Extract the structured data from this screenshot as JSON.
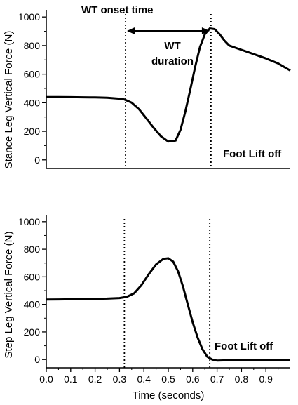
{
  "chart_data": [
    {
      "type": "line",
      "ylabel": "Stance Leg Vertical Force (N)",
      "xlim": [
        0,
        1.0
      ],
      "ylim": [
        -60,
        1050
      ],
      "yticks": [
        0,
        200,
        400,
        600,
        800,
        1000
      ],
      "series": [
        {
          "x": [
            0.0,
            0.05,
            0.1,
            0.15,
            0.2,
            0.25,
            0.3,
            0.32,
            0.35,
            0.38,
            0.41,
            0.44,
            0.47,
            0.5,
            0.53,
            0.55,
            0.57,
            0.59,
            0.61,
            0.63,
            0.65,
            0.67,
            0.69,
            0.71,
            0.73,
            0.75,
            0.8,
            0.85,
            0.9,
            0.95,
            1.0
          ],
          "y": [
            440,
            440,
            439,
            438,
            437,
            435,
            428,
            423,
            400,
            355,
            290,
            225,
            165,
            128,
            135,
            210,
            340,
            490,
            650,
            790,
            880,
            920,
            915,
            880,
            835,
            800,
            770,
            740,
            710,
            675,
            625
          ]
        }
      ],
      "vlines": [
        0.325,
        0.675
      ],
      "annotations": {
        "onset": "WT onset time",
        "duration_line1": "WT",
        "duration_line2": "duration",
        "lift": "Foot Lift off"
      }
    },
    {
      "type": "line",
      "xlabel": "Time (seconds)",
      "ylabel": "Step Leg Vertical Force (N)",
      "xlim": [
        0,
        1.0
      ],
      "ylim": [
        -60,
        1050
      ],
      "xticks": [
        0.0,
        0.1,
        0.2,
        0.3,
        0.4,
        0.5,
        0.6,
        0.7,
        0.8,
        0.9
      ],
      "xticklabels": [
        "0.0",
        "0.1",
        "0.2",
        "0.3",
        "0.4",
        "0.5",
        "0.6",
        "0.7",
        "0.8",
        "0.9"
      ],
      "yticks": [
        0,
        200,
        400,
        600,
        800,
        1000
      ],
      "series": [
        {
          "x": [
            0.0,
            0.05,
            0.1,
            0.15,
            0.2,
            0.25,
            0.3,
            0.33,
            0.36,
            0.39,
            0.42,
            0.45,
            0.48,
            0.5,
            0.52,
            0.54,
            0.56,
            0.58,
            0.6,
            0.62,
            0.64,
            0.66,
            0.68,
            0.7,
            0.75,
            0.8,
            0.85,
            0.9,
            0.95,
            1.0
          ],
          "y": [
            435,
            436,
            437,
            438,
            440,
            442,
            446,
            455,
            480,
            540,
            620,
            690,
            730,
            735,
            710,
            640,
            530,
            400,
            270,
            160,
            75,
            20,
            0,
            -8,
            -5,
            -3,
            -2,
            -2,
            -2,
            -2
          ]
        }
      ],
      "vlines": [
        0.32,
        0.67
      ],
      "annotations": {
        "lift": "Foot Lift off"
      }
    }
  ]
}
